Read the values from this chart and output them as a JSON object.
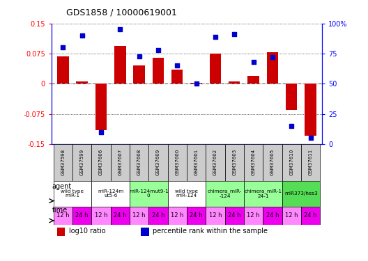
{
  "title": "GDS1858 / 10000619001",
  "samples": [
    "GSM37598",
    "GSM37599",
    "GSM37606",
    "GSM37607",
    "GSM37608",
    "GSM37609",
    "GSM37600",
    "GSM37601",
    "GSM37602",
    "GSM37603",
    "GSM37604",
    "GSM37605",
    "GSM37610",
    "GSM37611"
  ],
  "log10_ratio": [
    0.068,
    0.005,
    -0.115,
    0.095,
    0.045,
    0.065,
    0.035,
    0.002,
    0.075,
    0.005,
    0.02,
    0.078,
    -0.065,
    -0.13
  ],
  "percentile_rank": [
    80,
    90,
    10,
    95,
    73,
    78,
    65,
    50,
    89,
    91,
    68,
    72,
    15,
    5
  ],
  "agents": [
    {
      "label": "wild type\nmiR-1",
      "cols": [
        0,
        1
      ],
      "color": "#ffffff"
    },
    {
      "label": "miR-124m\nut5-6",
      "cols": [
        2,
        3
      ],
      "color": "#ffffff"
    },
    {
      "label": "miR-124mut9-1\n0",
      "cols": [
        4,
        5
      ],
      "color": "#99ff99"
    },
    {
      "label": "wild type\nmiR-124",
      "cols": [
        6,
        7
      ],
      "color": "#ffffff"
    },
    {
      "label": "chimera_miR-\n-124",
      "cols": [
        8,
        9
      ],
      "color": "#99ff99"
    },
    {
      "label": "chimera_miR-1\n24-1",
      "cols": [
        10,
        11
      ],
      "color": "#99ff99"
    },
    {
      "label": "miR373/hes3",
      "cols": [
        12,
        13
      ],
      "color": "#55dd55"
    }
  ],
  "time_color_light": "#ff88ff",
  "time_color_dark": "#ee00ee",
  "time_labels": [
    "12 h",
    "24 h"
  ],
  "ylim_left": [
    -0.15,
    0.15
  ],
  "ylim_right": [
    0,
    100
  ],
  "yticks_left": [
    -0.15,
    -0.075,
    0,
    0.075,
    0.15
  ],
  "yticks_right": [
    0,
    25,
    50,
    75,
    100
  ],
  "bar_color": "#cc0000",
  "dot_color": "#0000cc",
  "background_color": "#ffffff",
  "sample_bg_color": "#cccccc",
  "agent_label_color": "#dddddd"
}
